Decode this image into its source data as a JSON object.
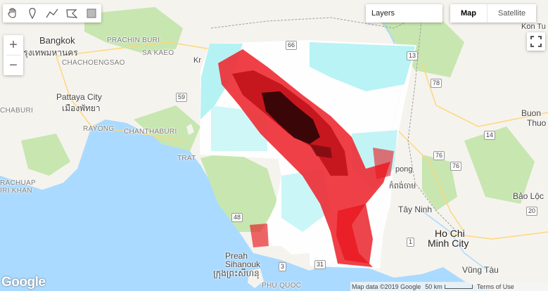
{
  "toolbar": {
    "tools": [
      {
        "icon": "hand-pan-icon"
      },
      {
        "icon": "marker-point-icon"
      },
      {
        "icon": "polyline-icon"
      },
      {
        "icon": "polygon-icon"
      },
      {
        "icon": "rectangle-icon"
      }
    ]
  },
  "zoom": {
    "in": "+",
    "out": "−"
  },
  "layers": {
    "label": "Layers"
  },
  "map_type": {
    "map": "Map",
    "satellite": "Satellite"
  },
  "labels": {
    "bangkok": "Bangkok",
    "bangkok_thai": "กรุงเทพมหานคร",
    "chachoengsao": "CHACHOENGSAO",
    "prachin_buri": "PRACHIN BURI",
    "sa_kaeo": "SA KAEO",
    "pattaya": "Pattaya City",
    "pattaya_thai": "เมืองพัทยา",
    "chonburi": "CHABURI",
    "rayong": "RAYONG",
    "chanthaburi": "CHANTHABURI",
    "trat": "TRAT",
    "prachuap": "RACHUAP",
    "khiri_khan": "IRI KHAN",
    "preah": "Preah",
    "sihanoukville": "Sihanouk",
    "sihanoukville_khmer": "ក្រុងព្រះសីហនុ",
    "phu_quoc": "PHU QUOC",
    "kampong": "pong",
    "kampong_khmer": "កំពង់ចាម",
    "tay_ninh": "Tây Ninh",
    "ho_chi_minh_1": "Ho Chi",
    "ho_chi_minh_2": "Minh City",
    "vung_tau": "Vũng Tàu",
    "bao_loc": "Bảo Lộc",
    "buon": "Buon",
    "thuo": "Thuo",
    "kon_tu": "Kon Tu",
    "kr": "Kr"
  },
  "road_shields": [
    "66",
    "59",
    "48",
    "3",
    "31",
    "78",
    "76",
    "20",
    "76",
    "14",
    "13",
    "1"
  ],
  "footer": {
    "map_data": "Map data ©2019 Google",
    "scale": "50 km",
    "terms": "Terms of Use"
  },
  "google_logo": "Google",
  "colors": {
    "water": "#aadaff",
    "land": "#f5f3ee",
    "forest": "#c8e6b0",
    "overlay_red": "#e8171f",
    "overlay_dark": "#5a0a0a",
    "overlay_cyan": "#a8f0f2"
  }
}
